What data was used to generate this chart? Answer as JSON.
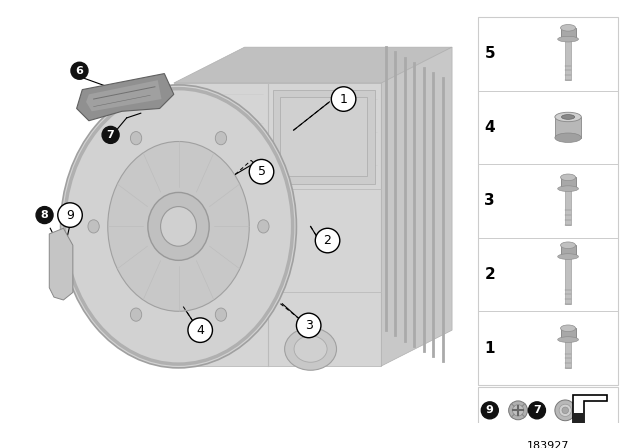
{
  "bg_color": "#ffffff",
  "diagram_number": "183927",
  "trans_light": "#d8d8d8",
  "trans_mid": "#c8c8c8",
  "trans_dark": "#b8b8b8",
  "trans_edge": "#999999",
  "shield_color": "#aaaaaa",
  "bracket_color": "#bbbbbb",
  "callout_circle_edge": "#000000",
  "callout_circle_bg": "#ffffff",
  "filled_callout_bg": "#111111",
  "filled_callout_fg": "#ffffff"
}
